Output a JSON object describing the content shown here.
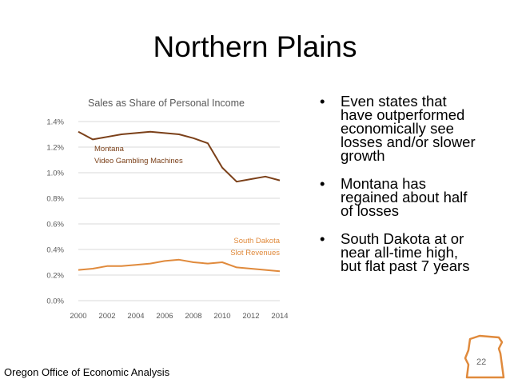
{
  "slide": {
    "title": "Northern Plains",
    "footer": "Oregon Office of Economic Analysis",
    "page_number": "22",
    "bullet_symbol": "•",
    "bullets": [
      "Even states that have outperformed economically see losses and/or slower growth",
      "Montana has regained about half of losses",
      "South Dakota at or near all-time high, but flat past 7 years"
    ]
  },
  "chart_data": {
    "type": "line",
    "title": "Sales as Share of Personal Income",
    "xlabel": "",
    "ylabel": "",
    "x": [
      2000,
      2001,
      2002,
      2003,
      2004,
      2005,
      2006,
      2007,
      2008,
      2009,
      2010,
      2011,
      2012,
      2013,
      2014
    ],
    "xticks": [
      "2000",
      "2002",
      "2004",
      "2006",
      "2008",
      "2010",
      "2012",
      "2014"
    ],
    "yticks": [
      "0.0%",
      "0.2%",
      "0.4%",
      "0.6%",
      "0.8%",
      "1.0%",
      "1.2%",
      "1.4%"
    ],
    "ylim": [
      0,
      1.4
    ],
    "xlim": [
      2000,
      2014
    ],
    "grid": true,
    "legend": "none",
    "series": [
      {
        "name": "Montana\nVideo Gambling Machines",
        "label_lines": [
          "Montana",
          "Video Gambling Machines"
        ],
        "color": "#7B4019",
        "values": [
          1.32,
          1.26,
          1.28,
          1.3,
          1.31,
          1.32,
          1.31,
          1.3,
          1.27,
          1.23,
          1.04,
          0.93,
          0.95,
          0.97,
          0.94
        ]
      },
      {
        "name": "South Dakota\nSlot Revenues",
        "label_lines": [
          "South Dakota",
          "Slot Revenues"
        ],
        "color": "#E08A3C",
        "values": [
          0.24,
          0.25,
          0.27,
          0.27,
          0.28,
          0.29,
          0.31,
          0.32,
          0.3,
          0.29,
          0.3,
          0.26,
          0.25,
          0.24,
          0.23
        ]
      }
    ]
  },
  "style": {
    "grid_color": "#d9d9d9",
    "axis_text_color": "#595959",
    "badge_color": "#E08A3C"
  }
}
